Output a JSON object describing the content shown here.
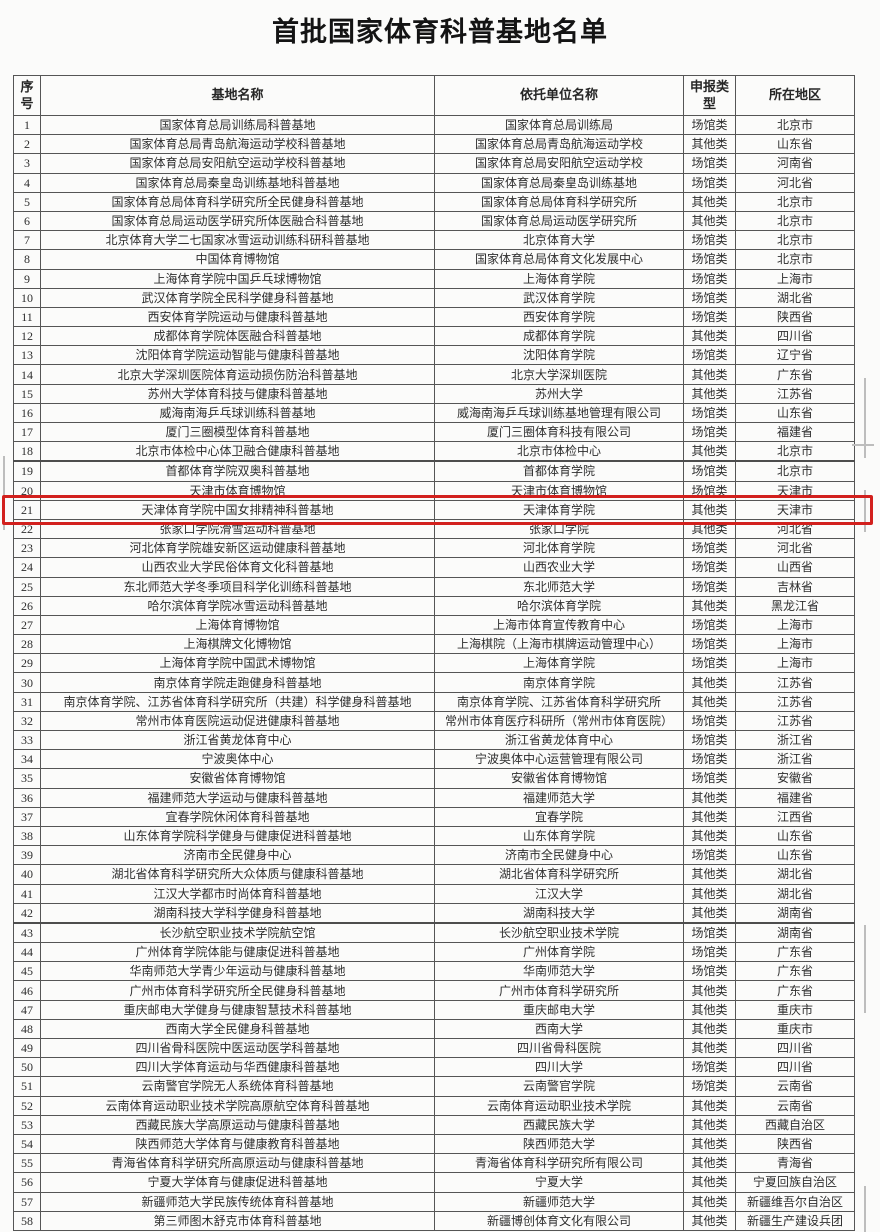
{
  "page": {
    "title": "首批国家体育科普基地名单"
  },
  "table": {
    "headers": [
      "序号",
      "基地名称",
      "依托单位名称",
      "申报类型",
      "所在地区"
    ],
    "page_break_after_rows": [
      18,
      42
    ],
    "highlight": {
      "row": 21,
      "color": "#d2201d"
    },
    "rows": [
      {
        "no": "1",
        "base": "国家体育总局训练局科普基地",
        "unit": "国家体育总局训练局",
        "type": "场馆类",
        "region": "北京市"
      },
      {
        "no": "2",
        "base": "国家体育总局青岛航海运动学校科普基地",
        "unit": "国家体育总局青岛航海运动学校",
        "type": "其他类",
        "region": "山东省"
      },
      {
        "no": "3",
        "base": "国家体育总局安阳航空运动学校科普基地",
        "unit": "国家体育总局安阳航空运动学校",
        "type": "场馆类",
        "region": "河南省"
      },
      {
        "no": "4",
        "base": "国家体育总局秦皇岛训练基地科普基地",
        "unit": "国家体育总局秦皇岛训练基地",
        "type": "场馆类",
        "region": "河北省"
      },
      {
        "no": "5",
        "base": "国家体育总局体育科学研究所全民健身科普基地",
        "unit": "国家体育总局体育科学研究所",
        "type": "其他类",
        "region": "北京市"
      },
      {
        "no": "6",
        "base": "国家体育总局运动医学研究所体医融合科普基地",
        "unit": "国家体育总局运动医学研究所",
        "type": "其他类",
        "region": "北京市"
      },
      {
        "no": "7",
        "base": "北京体育大学二七国家冰雪运动训练科研科普基地",
        "unit": "北京体育大学",
        "type": "场馆类",
        "region": "北京市"
      },
      {
        "no": "8",
        "base": "中国体育博物馆",
        "unit": "国家体育总局体育文化发展中心",
        "type": "场馆类",
        "region": "北京市"
      },
      {
        "no": "9",
        "base": "上海体育学院中国乒乓球博物馆",
        "unit": "上海体育学院",
        "type": "场馆类",
        "region": "上海市"
      },
      {
        "no": "10",
        "base": "武汉体育学院全民科学健身科普基地",
        "unit": "武汉体育学院",
        "type": "场馆类",
        "region": "湖北省"
      },
      {
        "no": "11",
        "base": "西安体育学院运动与健康科普基地",
        "unit": "西安体育学院",
        "type": "场馆类",
        "region": "陕西省"
      },
      {
        "no": "12",
        "base": "成都体育学院体医融合科普基地",
        "unit": "成都体育学院",
        "type": "其他类",
        "region": "四川省"
      },
      {
        "no": "13",
        "base": "沈阳体育学院运动智能与健康科普基地",
        "unit": "沈阳体育学院",
        "type": "场馆类",
        "region": "辽宁省"
      },
      {
        "no": "14",
        "base": "北京大学深圳医院体育运动损伤防治科普基地",
        "unit": "北京大学深圳医院",
        "type": "其他类",
        "region": "广东省"
      },
      {
        "no": "15",
        "base": "苏州大学体育科技与健康科普基地",
        "unit": "苏州大学",
        "type": "其他类",
        "region": "江苏省"
      },
      {
        "no": "16",
        "base": "威海南海乒乓球训练科普基地",
        "unit": "威海南海乒乓球训练基地管理有限公司",
        "type": "场馆类",
        "region": "山东省"
      },
      {
        "no": "17",
        "base": "厦门三圈模型体育科普基地",
        "unit": "厦门三圈体育科技有限公司",
        "type": "场馆类",
        "region": "福建省"
      },
      {
        "no": "18",
        "base": "北京市体检中心体卫融合健康科普基地",
        "unit": "北京市体检中心",
        "type": "其他类",
        "region": "北京市"
      },
      {
        "no": "19",
        "base": "首都体育学院双奥科普基地",
        "unit": "首都体育学院",
        "type": "场馆类",
        "region": "北京市"
      },
      {
        "no": "20",
        "base": "天津市体育博物馆",
        "unit": "天津市体育博物馆",
        "type": "场馆类",
        "region": "天津市"
      },
      {
        "no": "21",
        "base": "天津体育学院中国女排精神科普基地",
        "unit": "天津体育学院",
        "type": "其他类",
        "region": "天津市"
      },
      {
        "no": "22",
        "base": "张家口学院滑雪运动科普基地",
        "unit": "张家口学院",
        "type": "其他类",
        "region": "河北省"
      },
      {
        "no": "23",
        "base": "河北体育学院雄安新区运动健康科普基地",
        "unit": "河北体育学院",
        "type": "场馆类",
        "region": "河北省"
      },
      {
        "no": "24",
        "base": "山西农业大学民俗体育文化科普基地",
        "unit": "山西农业大学",
        "type": "场馆类",
        "region": "山西省"
      },
      {
        "no": "25",
        "base": "东北师范大学冬季项目科学化训练科普基地",
        "unit": "东北师范大学",
        "type": "场馆类",
        "region": "吉林省"
      },
      {
        "no": "26",
        "base": "哈尔滨体育学院冰雪运动科普基地",
        "unit": "哈尔滨体育学院",
        "type": "其他类",
        "region": "黑龙江省"
      },
      {
        "no": "27",
        "base": "上海体育博物馆",
        "unit": "上海市体育宣传教育中心",
        "type": "场馆类",
        "region": "上海市"
      },
      {
        "no": "28",
        "base": "上海棋牌文化博物馆",
        "unit": "上海棋院（上海市棋牌运动管理中心）",
        "type": "场馆类",
        "region": "上海市"
      },
      {
        "no": "29",
        "base": "上海体育学院中国武术博物馆",
        "unit": "上海体育学院",
        "type": "场馆类",
        "region": "上海市"
      },
      {
        "no": "30",
        "base": "南京体育学院走跑健身科普基地",
        "unit": "南京体育学院",
        "type": "其他类",
        "region": "江苏省"
      },
      {
        "no": "31",
        "base": "南京体育学院、江苏省体育科学研究所（共建）科学健身科普基地",
        "unit": "南京体育学院、江苏省体育科学研究所",
        "type": "其他类",
        "region": "江苏省"
      },
      {
        "no": "32",
        "base": "常州市体育医院运动促进健康科普基地",
        "unit": "常州市体育医疗科研所（常州市体育医院）",
        "type": "场馆类",
        "region": "江苏省"
      },
      {
        "no": "33",
        "base": "浙江省黄龙体育中心",
        "unit": "浙江省黄龙体育中心",
        "type": "场馆类",
        "region": "浙江省"
      },
      {
        "no": "34",
        "base": "宁波奥体中心",
        "unit": "宁波奥体中心运营管理有限公司",
        "type": "场馆类",
        "region": "浙江省"
      },
      {
        "no": "35",
        "base": "安徽省体育博物馆",
        "unit": "安徽省体育博物馆",
        "type": "场馆类",
        "region": "安徽省"
      },
      {
        "no": "36",
        "base": "福建师范大学运动与健康科普基地",
        "unit": "福建师范大学",
        "type": "其他类",
        "region": "福建省"
      },
      {
        "no": "37",
        "base": "宜春学院休闲体育科普基地",
        "unit": "宜春学院",
        "type": "其他类",
        "region": "江西省"
      },
      {
        "no": "38",
        "base": "山东体育学院科学健身与健康促进科普基地",
        "unit": "山东体育学院",
        "type": "其他类",
        "region": "山东省"
      },
      {
        "no": "39",
        "base": "济南市全民健身中心",
        "unit": "济南市全民健身中心",
        "type": "场馆类",
        "region": "山东省"
      },
      {
        "no": "40",
        "base": "湖北省体育科学研究所大众体质与健康科普基地",
        "unit": "湖北省体育科学研究所",
        "type": "其他类",
        "region": "湖北省"
      },
      {
        "no": "41",
        "base": "江汉大学都市时尚体育科普基地",
        "unit": "江汉大学",
        "type": "其他类",
        "region": "湖北省"
      },
      {
        "no": "42",
        "base": "湖南科技大学科学健身科普基地",
        "unit": "湖南科技大学",
        "type": "其他类",
        "region": "湖南省"
      },
      {
        "no": "43",
        "base": "长沙航空职业技术学院航空馆",
        "unit": "长沙航空职业技术学院",
        "type": "场馆类",
        "region": "湖南省"
      },
      {
        "no": "44",
        "base": "广州体育学院体能与健康促进科普基地",
        "unit": "广州体育学院",
        "type": "场馆类",
        "region": "广东省"
      },
      {
        "no": "45",
        "base": "华南师范大学青少年运动与健康科普基地",
        "unit": "华南师范大学",
        "type": "场馆类",
        "region": "广东省"
      },
      {
        "no": "46",
        "base": "广州市体育科学研究所全民健身科普基地",
        "unit": "广州市体育科学研究所",
        "type": "其他类",
        "region": "广东省"
      },
      {
        "no": "47",
        "base": "重庆邮电大学健身与健康智慧技术科普基地",
        "unit": "重庆邮电大学",
        "type": "其他类",
        "region": "重庆市"
      },
      {
        "no": "48",
        "base": "西南大学全民健身科普基地",
        "unit": "西南大学",
        "type": "其他类",
        "region": "重庆市"
      },
      {
        "no": "49",
        "base": "四川省骨科医院中医运动医学科普基地",
        "unit": "四川省骨科医院",
        "type": "其他类",
        "region": "四川省"
      },
      {
        "no": "50",
        "base": "四川大学体育运动与华西健康科普基地",
        "unit": "四川大学",
        "type": "场馆类",
        "region": "四川省"
      },
      {
        "no": "51",
        "base": "云南警官学院无人系统体育科普基地",
        "unit": "云南警官学院",
        "type": "场馆类",
        "region": "云南省"
      },
      {
        "no": "52",
        "base": "云南体育运动职业技术学院高原航空体育科普基地",
        "unit": "云南体育运动职业技术学院",
        "type": "其他类",
        "region": "云南省"
      },
      {
        "no": "53",
        "base": "西藏民族大学高原运动与健康科普基地",
        "unit": "西藏民族大学",
        "type": "其他类",
        "region": "西藏自治区"
      },
      {
        "no": "54",
        "base": "陕西师范大学体育与健康教育科普基地",
        "unit": "陕西师范大学",
        "type": "其他类",
        "region": "陕西省"
      },
      {
        "no": "55",
        "base": "青海省体育科学研究所高原运动与健康科普基地",
        "unit": "青海省体育科学研究所有限公司",
        "type": "其他类",
        "region": "青海省"
      },
      {
        "no": "56",
        "base": "宁夏大学体育与健康促进科普基地",
        "unit": "宁夏大学",
        "type": "其他类",
        "region": "宁夏回族自治区"
      },
      {
        "no": "57",
        "base": "新疆师范大学民族传统体育科普基地",
        "unit": "新疆师范大学",
        "type": "其他类",
        "region": "新疆维吾尔自治区"
      },
      {
        "no": "58",
        "base": "第三师图木舒克市体育科普基地",
        "unit": "新疆博创体育文化有限公司",
        "type": "其他类",
        "region": "新疆生产建设兵团"
      }
    ]
  }
}
